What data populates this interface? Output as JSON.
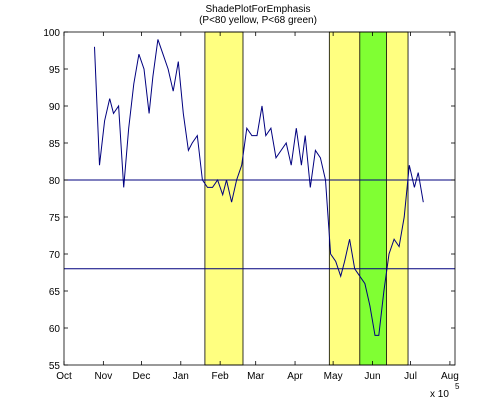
{
  "chart_data": {
    "type": "line",
    "title": "ShadePlotForEmphasis",
    "subtitle": "(P<80 yellow, P<68 green)",
    "x_exponent_label": "x 10",
    "x_exponent_power": "5",
    "xlim": [
      0,
      308
    ],
    "xticks": [
      {
        "value": 0,
        "label": "Oct"
      },
      {
        "value": 31,
        "label": "Nov"
      },
      {
        "value": 61,
        "label": "Dec"
      },
      {
        "value": 92,
        "label": "Jan"
      },
      {
        "value": 123,
        "label": "Feb"
      },
      {
        "value": 151,
        "label": "Mar"
      },
      {
        "value": 182,
        "label": "Apr"
      },
      {
        "value": 212,
        "label": "May"
      },
      {
        "value": 243,
        "label": "Jun"
      },
      {
        "value": 273,
        "label": "Jul"
      },
      {
        "value": 304,
        "label": "Aug"
      }
    ],
    "ylim": [
      55,
      100
    ],
    "yticks": [
      55,
      60,
      65,
      70,
      75,
      80,
      85,
      90,
      95,
      100
    ],
    "shaded_regions": [
      {
        "start": 111,
        "end": 141,
        "color": "#ffff80"
      },
      {
        "start": 209,
        "end": 271,
        "color": "#ffff80"
      },
      {
        "start": 233,
        "end": 254,
        "color": "#80ff33"
      }
    ],
    "thresholds": [
      80,
      68
    ],
    "threshold_color": "#00007f",
    "series": [
      {
        "color": "#00007f",
        "x": [
          24,
          28,
          32,
          36,
          39,
          43,
          47,
          51,
          55,
          59,
          63,
          67,
          70,
          74,
          78,
          82,
          86,
          90,
          94,
          98,
          101,
          105,
          109,
          113,
          117,
          121,
          125,
          128,
          132,
          136,
          140,
          144,
          148,
          152,
          156,
          159,
          163,
          167,
          171,
          175,
          179,
          183,
          187,
          190,
          194,
          198,
          202,
          206,
          210,
          214,
          218,
          221,
          225,
          229,
          233,
          237,
          241,
          245,
          248,
          252,
          256,
          260,
          264,
          268,
          272,
          276,
          279,
          283
        ],
        "values": [
          98,
          82,
          88,
          91,
          89,
          90,
          79,
          87,
          93,
          97,
          95,
          89,
          94,
          99,
          97,
          95,
          92,
          96,
          89,
          84,
          85,
          86,
          80,
          79,
          79,
          80,
          78,
          80,
          77,
          80,
          82,
          87,
          86,
          86,
          90,
          86,
          87,
          83,
          84,
          85,
          82,
          87,
          82,
          86,
          79,
          84,
          83,
          80,
          70,
          69,
          67,
          69,
          72,
          68,
          67,
          66,
          63,
          59,
          59,
          65,
          70,
          72,
          71,
          75,
          82,
          79,
          81,
          77
        ]
      }
    ]
  }
}
